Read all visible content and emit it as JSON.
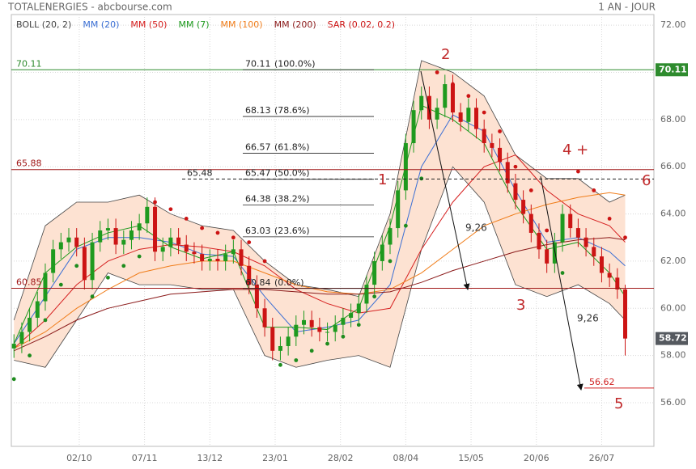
{
  "header": {
    "title": "TOTALENERGIES - abcbourse.com",
    "period": "1 AN - JOUR"
  },
  "chart_data": {
    "type": "candlestick",
    "xlim": [
      -1,
      245
    ],
    "ylim": [
      54.15,
      72.45
    ],
    "yticks": [
      {
        "value": 56,
        "label": "56.00"
      },
      {
        "value": 58,
        "label": "58.00"
      },
      {
        "value": 60,
        "label": "60.00"
      },
      {
        "value": 62,
        "label": "62.00"
      },
      {
        "value": 64,
        "label": "64.00"
      },
      {
        "value": 66,
        "label": "66.00"
      },
      {
        "value": 68,
        "label": "68.00"
      },
      {
        "value": 70,
        "label": "70.00"
      },
      {
        "value": 72,
        "label": "72.00"
      }
    ],
    "xticks": [
      {
        "value": 25,
        "label": "02/10"
      },
      {
        "value": 50,
        "label": "07/11"
      },
      {
        "value": 75,
        "label": "13/12"
      },
      {
        "value": 100,
        "label": "23/01"
      },
      {
        "value": 125,
        "label": "28/02"
      },
      {
        "value": 150,
        "label": "08/04"
      },
      {
        "value": 175,
        "label": "15/05"
      },
      {
        "value": 200,
        "label": "20/06"
      },
      {
        "value": 225,
        "label": "26/07"
      }
    ],
    "grid": true,
    "up_color": "#1f9a1f",
    "down_color": "#cc1414",
    "candles": {
      "x": [
        0,
        3,
        6,
        9,
        12,
        15,
        18,
        21,
        24,
        27,
        30,
        33,
        36,
        39,
        42,
        45,
        48,
        51,
        54,
        57,
        60,
        63,
        66,
        69,
        72,
        75,
        78,
        81,
        84,
        87,
        90,
        93,
        96,
        99,
        102,
        105,
        108,
        111,
        114,
        117,
        120,
        123,
        126,
        129,
        132,
        135,
        138,
        141,
        144,
        147,
        150,
        153,
        156,
        159,
        162,
        165,
        168,
        171,
        174,
        177,
        180,
        183,
        186,
        189,
        192,
        195,
        198,
        201,
        204,
        207,
        210,
        213,
        216,
        219,
        222,
        225,
        228,
        231,
        234
      ],
      "open": [
        58.3,
        58.5,
        59.0,
        59.6,
        60.3,
        61.5,
        62.5,
        62.8,
        63.0,
        62.6,
        61.2,
        62.8,
        63.3,
        63.4,
        62.7,
        62.9,
        63.3,
        63.6,
        64.3,
        62.4,
        62.6,
        63.0,
        62.7,
        62.4,
        62.3,
        62.0,
        62.1,
        62.0,
        62.3,
        62.5,
        61.8,
        61.0,
        60.0,
        59.2,
        58.2,
        58.4,
        58.8,
        59.3,
        59.5,
        59.2,
        59.0,
        59.0,
        59.3,
        59.6,
        59.8,
        60.2,
        61.0,
        62.0,
        62.7,
        63.4,
        65.0,
        67.0,
        68.4,
        69.0,
        68.0,
        68.5,
        69.5,
        68.3,
        67.9,
        68.5,
        67.6,
        67.0,
        66.8,
        66.2,
        65.3,
        64.6,
        64.0,
        63.2,
        62.5,
        61.9,
        62.8,
        64.0,
        63.4,
        63.0,
        62.6,
        62.2,
        61.5,
        61.3,
        60.8
      ],
      "high": [
        58.9,
        59.4,
        60.0,
        60.7,
        61.9,
        62.9,
        63.2,
        63.4,
        63.4,
        63.0,
        63.2,
        63.7,
        63.8,
        63.8,
        63.3,
        63.7,
        64.0,
        64.7,
        64.7,
        63.0,
        63.4,
        63.4,
        63.1,
        62.8,
        62.7,
        62.5,
        62.5,
        62.7,
        62.9,
        62.9,
        62.2,
        61.4,
        60.4,
        59.6,
        58.8,
        59.2,
        59.7,
        59.9,
        59.9,
        59.6,
        59.4,
        59.7,
        60.0,
        60.2,
        60.6,
        61.4,
        62.4,
        63.1,
        63.8,
        65.4,
        67.4,
        68.8,
        69.4,
        69.4,
        68.9,
        69.9,
        69.9,
        68.7,
        68.9,
        68.9,
        68.0,
        67.4,
        67.2,
        66.6,
        65.7,
        65.0,
        64.4,
        63.6,
        62.9,
        63.2,
        64.4,
        64.4,
        63.8,
        63.4,
        63.0,
        62.6,
        61.9,
        61.7,
        61.0
      ],
      "low": [
        57.9,
        58.1,
        58.6,
        59.2,
        59.9,
        61.1,
        62.1,
        62.4,
        62.2,
        60.8,
        60.8,
        62.4,
        62.9,
        62.3,
        62.3,
        62.5,
        62.9,
        63.2,
        62.0,
        62.0,
        62.2,
        62.3,
        62.0,
        61.9,
        61.6,
        61.6,
        61.6,
        61.6,
        61.9,
        61.4,
        60.6,
        59.6,
        58.8,
        57.8,
        57.8,
        58.0,
        58.4,
        58.9,
        58.8,
        58.6,
        58.6,
        58.6,
        58.9,
        59.2,
        59.4,
        59.8,
        60.6,
        61.6,
        62.3,
        63.0,
        64.6,
        66.6,
        68.0,
        67.6,
        67.6,
        68.1,
        67.9,
        67.5,
        67.5,
        67.2,
        66.6,
        66.4,
        65.8,
        64.9,
        64.2,
        63.6,
        62.8,
        62.1,
        61.5,
        61.5,
        62.4,
        63.0,
        62.6,
        62.2,
        61.8,
        61.1,
        60.9,
        60.4,
        58.0
      ],
      "close": [
        58.5,
        59.0,
        59.6,
        60.3,
        61.5,
        62.5,
        62.8,
        63.0,
        62.6,
        61.2,
        62.8,
        63.3,
        63.4,
        62.7,
        62.9,
        63.3,
        63.6,
        64.3,
        62.4,
        62.6,
        63.0,
        62.7,
        62.4,
        62.3,
        62.0,
        62.1,
        62.0,
        62.3,
        62.5,
        61.8,
        61.0,
        60.0,
        59.2,
        58.2,
        58.4,
        58.8,
        59.3,
        59.5,
        59.2,
        59.0,
        59.0,
        59.3,
        59.6,
        59.8,
        60.2,
        61.0,
        62.0,
        62.7,
        63.4,
        65.0,
        67.0,
        68.4,
        69.0,
        68.0,
        68.5,
        69.5,
        68.3,
        67.9,
        68.5,
        67.6,
        67.0,
        66.8,
        66.2,
        65.3,
        64.6,
        64.0,
        63.2,
        62.5,
        61.9,
        62.8,
        64.0,
        63.4,
        63.0,
        62.6,
        62.2,
        61.5,
        61.3,
        60.8,
        58.72
      ]
    },
    "series": [
      {
        "name": "BOLL (20, 2)",
        "color": "#444444",
        "band_fill": "#fde2d2",
        "x": [
          0,
          12,
          24,
          36,
          48,
          60,
          72,
          84,
          96,
          108,
          120,
          132,
          144,
          156,
          168,
          180,
          192,
          204,
          216,
          228,
          234
        ],
        "upper": [
          59.5,
          63.5,
          64.5,
          64.5,
          64.8,
          64.0,
          63.5,
          63.3,
          62.0,
          61.0,
          60.8,
          60.5,
          64.0,
          70.5,
          70.0,
          69.0,
          66.5,
          65.5,
          65.5,
          64.5,
          64.8
        ],
        "lower": [
          57.8,
          57.5,
          59.5,
          61.5,
          61.0,
          61.0,
          60.8,
          60.8,
          58.0,
          57.5,
          57.8,
          58.0,
          57.5,
          62.5,
          66.0,
          64.5,
          61.0,
          60.5,
          61.0,
          60.2,
          59.5
        ]
      },
      {
        "name": "MM (20)",
        "color": "#3b6fd4",
        "x": [
          0,
          12,
          24,
          36,
          48,
          60,
          72,
          84,
          96,
          108,
          120,
          132,
          144,
          156,
          168,
          180,
          192,
          204,
          216,
          228,
          234
        ],
        "values": [
          58.5,
          60.5,
          62.5,
          63.0,
          63.0,
          62.8,
          62.3,
          62.2,
          60.5,
          59.0,
          59.2,
          59.5,
          61.0,
          66.0,
          68.2,
          67.5,
          65.0,
          62.8,
          63.0,
          62.4,
          61.8
        ]
      },
      {
        "name": "MM (50)",
        "color": "#d62020",
        "x": [
          0,
          12,
          24,
          36,
          48,
          60,
          72,
          84,
          96,
          108,
          120,
          132,
          144,
          156,
          168,
          180,
          192,
          204,
          216,
          228,
          234
        ],
        "values": [
          58.3,
          59.5,
          61.0,
          62.0,
          62.5,
          62.7,
          62.6,
          62.4,
          61.8,
          60.8,
          60.2,
          59.8,
          60.0,
          62.5,
          64.5,
          66.0,
          66.5,
          65.0,
          64.0,
          63.5,
          62.8
        ]
      },
      {
        "name": "MM (7)",
        "color": "#1e9a1e",
        "x": [
          0,
          12,
          24,
          36,
          48,
          60,
          72,
          84,
          96,
          108,
          120,
          132,
          144,
          156,
          168,
          180,
          192,
          204,
          216,
          228,
          234
        ],
        "values": [
          58.5,
          61.5,
          62.6,
          63.2,
          63.5,
          62.6,
          62.1,
          62.4,
          59.2,
          59.2,
          59.1,
          60.0,
          63.5,
          68.6,
          68.0,
          67.0,
          64.4,
          62.5,
          62.8,
          61.5,
          60.5
        ]
      },
      {
        "name": "MM (100)",
        "color": "#f07d1a",
        "x": [
          0,
          12,
          24,
          36,
          48,
          60,
          72,
          84,
          96,
          108,
          120,
          132,
          144,
          156,
          168,
          180,
          192,
          204,
          216,
          228,
          234
        ],
        "values": [
          58.3,
          59.0,
          60.0,
          60.8,
          61.5,
          61.8,
          62.0,
          62.0,
          61.5,
          61.0,
          60.7,
          60.6,
          60.8,
          61.5,
          62.5,
          63.5,
          64.0,
          64.4,
          64.7,
          64.9,
          64.8
        ]
      },
      {
        "name": "MM (200)",
        "color": "#8b1a1a",
        "x": [
          0,
          12,
          24,
          36,
          48,
          60,
          72,
          84,
          96,
          108,
          120,
          132,
          144,
          156,
          168,
          180,
          192,
          204,
          216,
          228,
          234
        ],
        "values": [
          58.2,
          58.8,
          59.5,
          60.0,
          60.3,
          60.6,
          60.7,
          60.8,
          60.8,
          60.7,
          60.6,
          60.6,
          60.7,
          61.1,
          61.6,
          62.0,
          62.4,
          62.7,
          62.9,
          63.0,
          62.9
        ]
      },
      {
        "name": "SAR (0.02, 0.2)",
        "color": "#cc1414",
        "below_color": "#1e8c1e",
        "dots": true,
        "x": [
          0,
          6,
          12,
          18,
          24,
          30,
          36,
          42,
          48,
          54,
          60,
          66,
          72,
          78,
          84,
          90,
          96,
          102,
          108,
          114,
          120,
          126,
          132,
          138,
          144,
          150,
          156,
          162,
          168,
          174,
          180,
          186,
          192,
          198,
          204,
          210,
          216,
          222,
          228,
          234
        ],
        "values": [
          57.0,
          58.0,
          59.5,
          61.0,
          61.8,
          60.5,
          61.3,
          61.8,
          62.2,
          64.5,
          64.2,
          63.8,
          63.4,
          63.2,
          63.0,
          62.8,
          62.0,
          57.6,
          57.8,
          58.2,
          58.5,
          58.8,
          59.3,
          60.5,
          62.0,
          63.5,
          65.5,
          70.0,
          69.5,
          69.0,
          68.3,
          67.5,
          66.0,
          65.0,
          63.3,
          61.5,
          65.8,
          65.0,
          63.8,
          63.0
        ]
      }
    ],
    "levels": [
      {
        "value": 70.11,
        "color": "#2e8b2e",
        "tag": true
      },
      {
        "value": 65.88,
        "color": "#a01818"
      },
      {
        "value": 65.48,
        "color": "#222222",
        "dashed": true
      },
      {
        "value": 60.85,
        "color": "#a01818"
      },
      {
        "value": 56.62,
        "color": "#d02020"
      }
    ],
    "last_tag_color": "#55595f",
    "fib": [
      {
        "value": 70.11,
        "label": "(100.0%)"
      },
      {
        "value": 68.13,
        "label": "(78.6%)"
      },
      {
        "value": 66.57,
        "label": "(61.8%)"
      },
      {
        "value": 65.47,
        "label": "(50.0%)"
      },
      {
        "value": 64.38,
        "label": "(38.2%)"
      },
      {
        "value": 63.03,
        "label": "(23.6%)"
      },
      {
        "value": 60.84,
        "label": "(0.0%)"
      }
    ],
    "annotations": [
      "1",
      "2",
      "3",
      "4 +",
      "5",
      "6",
      "9,26",
      "9,26"
    ]
  }
}
